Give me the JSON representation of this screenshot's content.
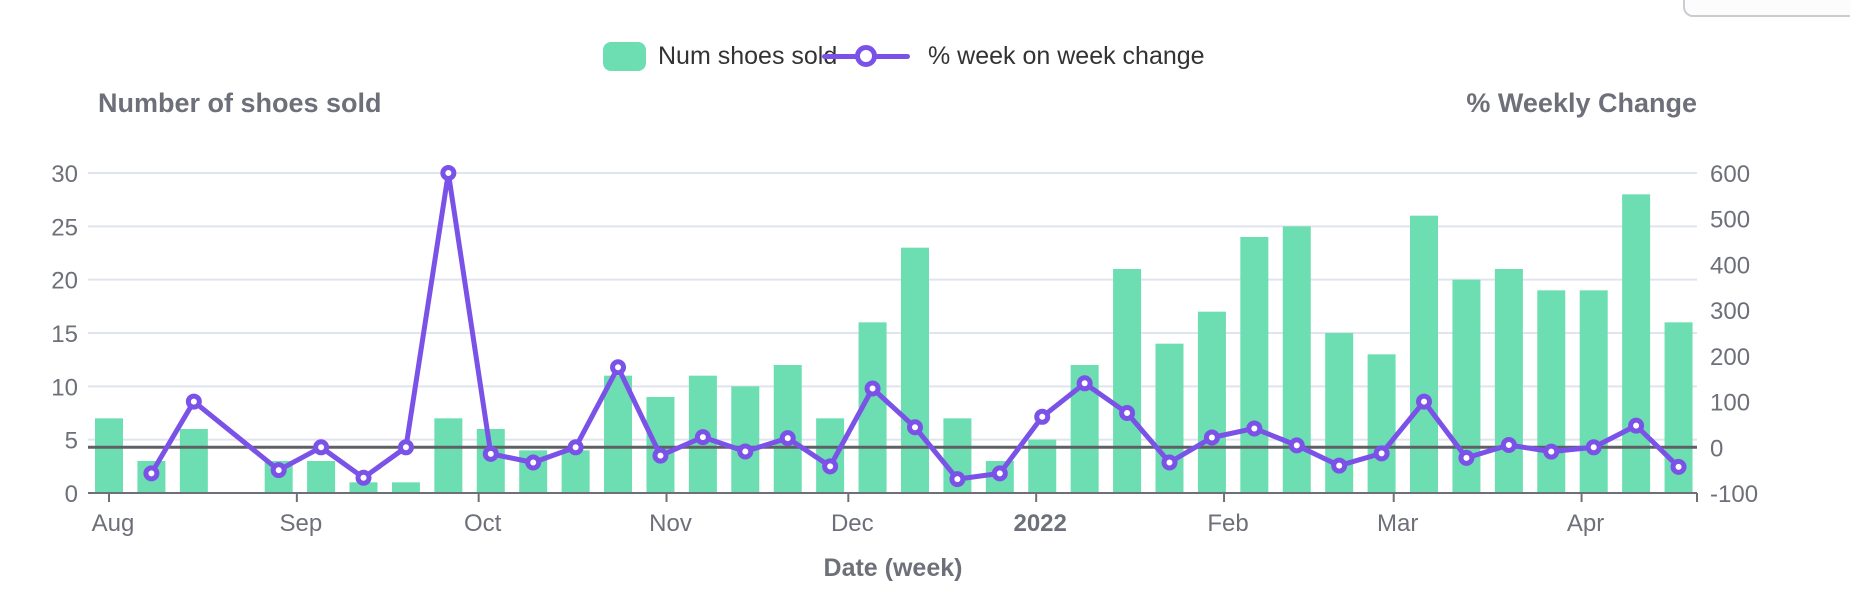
{
  "chart_data": {
    "type": "combo",
    "titles": {
      "left_axis_title": "Number of shoes sold",
      "right_axis_title": "% Weekly Change",
      "x_axis_title": "Date (week)"
    },
    "legend": [
      {
        "label": "Num shoes sold",
        "type": "bar",
        "color": "#6CDEB1"
      },
      {
        "label": "% week on week change",
        "type": "line",
        "color": "#7B52E8"
      }
    ],
    "x_start": "2021-08-01",
    "x_axis": {
      "type": "time-weekly",
      "missing_weeks": [
        "2021-08-22"
      ],
      "month_ticks": [
        {
          "label": "Aug",
          "date": "2021-08-01",
          "bold": false
        },
        {
          "label": "Sep",
          "date": "2021-09-01",
          "bold": false
        },
        {
          "label": "Oct",
          "date": "2021-10-01",
          "bold": false
        },
        {
          "label": "Nov",
          "date": "2021-11-01",
          "bold": false
        },
        {
          "label": "Dec",
          "date": "2021-12-01",
          "bold": false
        },
        {
          "label": "2022",
          "date": "2022-01-01",
          "bold": true
        },
        {
          "label": "Feb",
          "date": "2022-02-01",
          "bold": false
        },
        {
          "label": "Mar",
          "date": "2022-03-01",
          "bold": false
        },
        {
          "label": "Apr",
          "date": "2022-04-01",
          "bold": false
        }
      ]
    },
    "left_axis": {
      "range": [
        0,
        30
      ],
      "ticks": [
        0,
        5,
        10,
        15,
        20,
        25,
        30
      ]
    },
    "right_axis": {
      "range": [
        -100,
        600
      ],
      "ticks": [
        -100,
        0,
        100,
        200,
        300,
        400,
        500,
        600
      ],
      "zero_line": true
    },
    "weeks": [
      {
        "date": "2021-08-01",
        "sold": 7,
        "pct": null
      },
      {
        "date": "2021-08-08",
        "sold": 3,
        "pct": -57.1
      },
      {
        "date": "2021-08-15",
        "sold": 6,
        "pct": 100
      },
      {
        "date": "2021-08-29",
        "sold": 3,
        "pct": -50
      },
      {
        "date": "2021-09-05",
        "sold": 3,
        "pct": 0
      },
      {
        "date": "2021-09-12",
        "sold": 1,
        "pct": -66.7
      },
      {
        "date": "2021-09-19",
        "sold": 1,
        "pct": 0
      },
      {
        "date": "2021-09-26",
        "sold": 7,
        "pct": 600
      },
      {
        "date": "2021-10-03",
        "sold": 6,
        "pct": -14.3
      },
      {
        "date": "2021-10-10",
        "sold": 4,
        "pct": -33.3
      },
      {
        "date": "2021-10-17",
        "sold": 4,
        "pct": 0
      },
      {
        "date": "2021-10-24",
        "sold": 11,
        "pct": 175
      },
      {
        "date": "2021-10-31",
        "sold": 9,
        "pct": -18.2
      },
      {
        "date": "2021-11-07",
        "sold": 11,
        "pct": 22.2
      },
      {
        "date": "2021-11-14",
        "sold": 10,
        "pct": -9.1
      },
      {
        "date": "2021-11-21",
        "sold": 12,
        "pct": 20
      },
      {
        "date": "2021-11-28",
        "sold": 7,
        "pct": -41.7
      },
      {
        "date": "2021-12-05",
        "sold": 16,
        "pct": 128.6
      },
      {
        "date": "2021-12-12",
        "sold": 23,
        "pct": 43.8
      },
      {
        "date": "2021-12-19",
        "sold": 7,
        "pct": -69.6
      },
      {
        "date": "2021-12-26",
        "sold": 3,
        "pct": -57.1
      },
      {
        "date": "2022-01-02",
        "sold": 5,
        "pct": 66.7
      },
      {
        "date": "2022-01-09",
        "sold": 12,
        "pct": 140
      },
      {
        "date": "2022-01-16",
        "sold": 21,
        "pct": 75
      },
      {
        "date": "2022-01-23",
        "sold": 14,
        "pct": -33.3
      },
      {
        "date": "2022-01-30",
        "sold": 17,
        "pct": 21.4
      },
      {
        "date": "2022-02-06",
        "sold": 24,
        "pct": 41.2
      },
      {
        "date": "2022-02-13",
        "sold": 25,
        "pct": 4.2
      },
      {
        "date": "2022-02-20",
        "sold": 15,
        "pct": -40
      },
      {
        "date": "2022-02-27",
        "sold": 13,
        "pct": -13.3
      },
      {
        "date": "2022-03-06",
        "sold": 26,
        "pct": 100
      },
      {
        "date": "2022-03-13",
        "sold": 20,
        "pct": -23.1
      },
      {
        "date": "2022-03-20",
        "sold": 21,
        "pct": 5
      },
      {
        "date": "2022-03-27",
        "sold": 19,
        "pct": -9.5
      },
      {
        "date": "2022-04-03",
        "sold": 19,
        "pct": 0
      },
      {
        "date": "2022-04-10",
        "sold": 28,
        "pct": 47.4
      },
      {
        "date": "2022-04-17",
        "sold": 16,
        "pct": -42.9
      }
    ],
    "colors": {
      "bar": "#6CDEB1",
      "line": "#7B52E8",
      "grid": "#E0E4EE",
      "axis_text": "#6E7079",
      "axis_line": "#6E7079",
      "zero_line": "#5E6066",
      "legend_text": "#333333"
    }
  }
}
